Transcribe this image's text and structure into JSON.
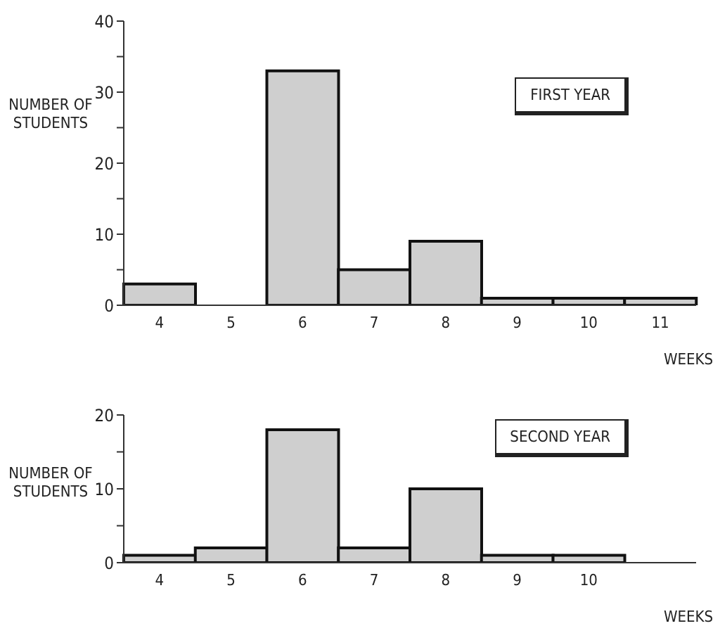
{
  "chart_data": [
    {
      "type": "bar",
      "title": "FIRST YEAR",
      "xlabel": "WEEKS",
      "ylabel": "NUMBER OF STUDENTS",
      "categories": [
        "4",
        "5",
        "6",
        "7",
        "8",
        "9",
        "10",
        "11"
      ],
      "series": [
        {
          "color": "#cfcfcf",
          "values": [
            3,
            0,
            33,
            5,
            9,
            1,
            1,
            1
          ]
        }
      ],
      "ylim": [
        0,
        40
      ],
      "yticks": [
        0,
        {
          "value": 5,
          "label": null
        },
        10,
        {
          "value": 15,
          "label": null
        },
        20,
        {
          "value": 25,
          "label": null
        },
        30,
        {
          "value": 35,
          "label": null
        },
        40
      ],
      "grid": false,
      "legend": false
    },
    {
      "type": "bar",
      "title": "SECOND YEAR",
      "xlabel": "WEEKS",
      "ylabel": "NUMBER OF STUDENTS",
      "categories": [
        "4",
        "5",
        "6",
        "7",
        "8",
        "9",
        "10",
        null
      ],
      "series": [
        {
          "color": "#cfcfcf",
          "values": [
            1,
            2,
            18,
            2,
            10,
            1,
            1,
            null
          ]
        }
      ],
      "ylim": [
        0,
        20
      ],
      "yticks": [
        0,
        {
          "value": 5,
          "label": null
        },
        10,
        {
          "value": 15,
          "label": null
        },
        20
      ],
      "grid": false,
      "legend": false
    }
  ]
}
